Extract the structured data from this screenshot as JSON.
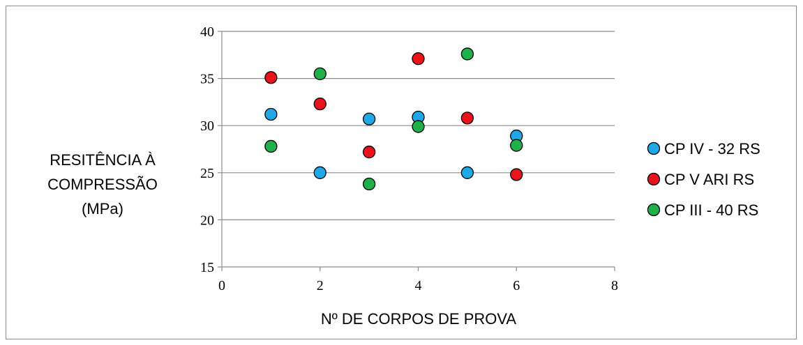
{
  "chart_data": {
    "type": "scatter",
    "xlabel": "Nº DE CORPOS DE PROVA",
    "ylabel_lines": [
      "RESITÊNCIA À",
      "COMPRESSÃO",
      "(MPa)"
    ],
    "xlim": [
      0,
      8
    ],
    "ylim": [
      15,
      40
    ],
    "xticks": [
      0,
      2,
      4,
      6,
      8
    ],
    "yticks": [
      15,
      20,
      25,
      30,
      35,
      40
    ],
    "grid": "horizontal",
    "legend_position": "right",
    "series": [
      {
        "name": "CP IV - 32 RS",
        "color": "#1fa8e8",
        "points": [
          [
            1,
            31.2
          ],
          [
            2,
            25.0
          ],
          [
            3,
            30.7
          ],
          [
            4,
            30.9
          ],
          [
            5,
            25.0
          ],
          [
            6,
            28.9
          ]
        ]
      },
      {
        "name": "CP V ARI RS",
        "color": "#e8131b",
        "points": [
          [
            1,
            35.1
          ],
          [
            2,
            32.3
          ],
          [
            3,
            27.2
          ],
          [
            4,
            37.1
          ],
          [
            5,
            30.8
          ],
          [
            6,
            24.8
          ]
        ]
      },
      {
        "name": "CP III - 40 RS",
        "color": "#1fb04a",
        "points": [
          [
            1,
            27.8
          ],
          [
            2,
            35.5
          ],
          [
            3,
            23.8
          ],
          [
            4,
            29.9
          ],
          [
            5,
            37.6
          ],
          [
            6,
            27.9
          ]
        ]
      }
    ]
  }
}
